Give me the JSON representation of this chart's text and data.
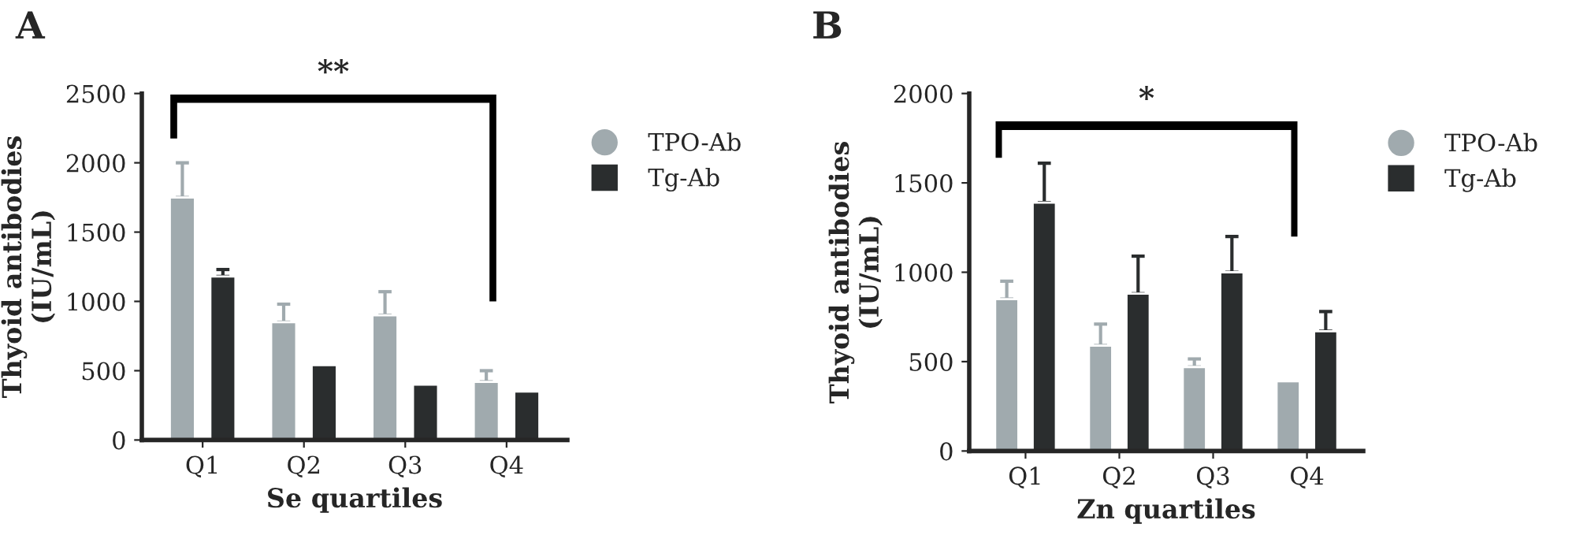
{
  "chart_data": [
    {
      "type": "bar",
      "title": "A",
      "xlabel": "Se quartiles",
      "ylabel": "Thyoid antibodies\n(IU/mL)",
      "categories": [
        "Q1",
        "Q2",
        "Q3",
        "Q4"
      ],
      "ylim": [
        0,
        2500
      ],
      "yticks": [
        0,
        500,
        1000,
        1500,
        2000,
        2500
      ],
      "grid": false,
      "legend": "right",
      "series": [
        {
          "name": "TPO-Ab",
          "color": "#a0aaae",
          "values": [
            1750,
            850,
            900,
            420
          ],
          "errors": [
            [
              1750,
              2000
            ],
            [
              850,
              980
            ],
            [
              900,
              1070
            ],
            [
              420,
              500
            ]
          ]
        },
        {
          "name": "Tg-Ab",
          "color": "#2a2d2e",
          "values": [
            1180,
            540,
            400,
            350
          ],
          "errors": [
            [
              1180,
              1230
            ],
            null,
            null,
            null
          ]
        }
      ],
      "annotations": [
        "**"
      ]
    },
    {
      "type": "bar",
      "title": "B",
      "xlabel": "Zn quartiles",
      "ylabel": "Thyoid antibodies\n(IU/mL)",
      "categories": [
        "Q1",
        "Q2",
        "Q3",
        "Q4"
      ],
      "ylim": [
        0,
        2000
      ],
      "yticks": [
        0,
        500,
        1000,
        1500,
        2000
      ],
      "grid": false,
      "legend": "right",
      "series": [
        {
          "name": "TPO-Ab",
          "color": "#a0aaae",
          "values": [
            850,
            590,
            470,
            390
          ],
          "errors": [
            [
              850,
              950
            ],
            [
              590,
              710
            ],
            [
              470,
              515
            ],
            null
          ]
        },
        {
          "name": "Tg-Ab",
          "color": "#2a2d2e",
          "values": [
            1390,
            880,
            1000,
            670
          ],
          "errors": [
            [
              1390,
              1610
            ],
            [
              880,
              1090
            ],
            [
              1000,
              1200
            ],
            [
              670,
              780
            ]
          ]
        }
      ],
      "annotations": [
        "*"
      ]
    }
  ]
}
